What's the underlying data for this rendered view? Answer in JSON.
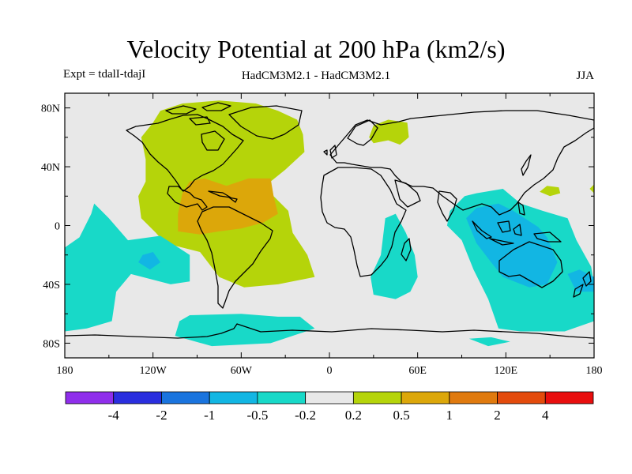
{
  "header": {
    "title": "Velocity Potential at 200 hPa (km2/s)",
    "expt": "Expt = tdalI-tdajI",
    "models": "HadCM3M2.1 - HadCM3M2.1",
    "season": "JJA"
  },
  "chart_data": {
    "type": "contour-map",
    "title": "Velocity Potential at 200 hPa (km2/s)",
    "projection": "cylindrical equidistant",
    "xlim": [
      -180,
      180
    ],
    "ylim": [
      -90,
      90
    ],
    "x_ticks": [
      {
        "value": -180,
        "label": "180"
      },
      {
        "value": -120,
        "label": "120W"
      },
      {
        "value": -60,
        "label": "60W"
      },
      {
        "value": 0,
        "label": "0"
      },
      {
        "value": 60,
        "label": "60E"
      },
      {
        "value": 120,
        "label": "120E"
      },
      {
        "value": 180,
        "label": "180"
      }
    ],
    "y_ticks": [
      {
        "value": 80,
        "label": "80N"
      },
      {
        "value": 40,
        "label": "40N"
      },
      {
        "value": 0,
        "label": "0"
      },
      {
        "value": -40,
        "label": "40S"
      },
      {
        "value": -80,
        "label": "80S"
      }
    ],
    "colorbar": {
      "colors": [
        "#8f2eeb",
        "#2a2ede",
        "#1a74de",
        "#12b6e3",
        "#18d9c8",
        "#e8e8e8",
        "#b5d40a",
        "#dca70a",
        "#e07a0e",
        "#e34b0c",
        "#e80e0e"
      ],
      "labels": [
        "-4",
        "-2",
        "-1",
        "-0.5",
        "-0.2",
        "0.2",
        "0.5",
        "1",
        "2",
        "4"
      ]
    },
    "regions": [
      {
        "level": "0.2 to 0.5",
        "color": "#b5d40a",
        "points": [
          [
            -115,
            78
          ],
          [
            -100,
            83
          ],
          [
            -75,
            85
          ],
          [
            -50,
            83
          ],
          [
            -35,
            78
          ],
          [
            -22,
            72
          ],
          [
            -18,
            62
          ],
          [
            -17,
            50
          ],
          [
            -30,
            38
          ],
          [
            -40,
            30
          ],
          [
            -38,
            20
          ],
          [
            -28,
            10
          ],
          [
            -25,
            -5
          ],
          [
            -15,
            -20
          ],
          [
            -10,
            -35
          ],
          [
            -35,
            -40
          ],
          [
            -58,
            -42
          ],
          [
            -75,
            -35
          ],
          [
            -88,
            -18
          ],
          [
            -112,
            -12
          ],
          [
            -118,
            -5
          ],
          [
            -128,
            5
          ],
          [
            -130,
            20
          ],
          [
            -125,
            30
          ],
          [
            -125,
            45
          ],
          [
            -128,
            60
          ],
          [
            -120,
            70
          ]
        ]
      },
      {
        "level": "0.2 to 0.5",
        "color": "#b5d40a",
        "points": [
          [
            27,
            60
          ],
          [
            30,
            68
          ],
          [
            40,
            72
          ],
          [
            53,
            70
          ],
          [
            54,
            60
          ],
          [
            48,
            55
          ],
          [
            40,
            58
          ],
          [
            30,
            56
          ]
        ]
      },
      {
        "level": "0.2 to 0.5",
        "color": "#b5d40a",
        "points": [
          [
            143,
            23
          ],
          [
            148,
            27
          ],
          [
            156,
            26
          ],
          [
            157,
            22
          ],
          [
            150,
            20
          ]
        ]
      },
      {
        "level": "0.2 to 0.5",
        "color": "#b5d40a",
        "points": [
          [
            177,
            25
          ],
          [
            180,
            28
          ],
          [
            180,
            22
          ]
        ]
      },
      {
        "level": "0.5 to 1",
        "color": "#dca70a",
        "points": [
          [
            -95,
            30
          ],
          [
            -85,
            32
          ],
          [
            -70,
            27
          ],
          [
            -55,
            32
          ],
          [
            -40,
            32
          ],
          [
            -38,
            20
          ],
          [
            -35,
            8
          ],
          [
            -45,
            2
          ],
          [
            -60,
            -2
          ],
          [
            -75,
            -4
          ],
          [
            -88,
            -6
          ],
          [
            -103,
            -4
          ],
          [
            -103,
            8
          ],
          [
            -100,
            22
          ]
        ]
      },
      {
        "level": "-0.5 to -0.2",
        "color": "#18d9c8",
        "points": [
          [
            -180,
            -15
          ],
          [
            -170,
            -8
          ],
          [
            -162,
            8
          ],
          [
            -160,
            15
          ],
          [
            -150,
            5
          ],
          [
            -137,
            -10
          ],
          [
            -115,
            -7
          ],
          [
            -95,
            -20
          ],
          [
            -95,
            -38
          ],
          [
            -108,
            -40
          ],
          [
            -135,
            -33
          ],
          [
            -145,
            -45
          ],
          [
            -148,
            -65
          ],
          [
            -165,
            -70
          ],
          [
            -180,
            -72
          ]
        ]
      },
      {
        "level": "-0.5 to -0.2",
        "color": "#18d9c8",
        "points": [
          [
            -102,
            -65
          ],
          [
            -95,
            -61
          ],
          [
            -60,
            -60
          ],
          [
            -35,
            -62
          ],
          [
            -20,
            -62
          ],
          [
            -10,
            -70
          ],
          [
            -40,
            -80
          ],
          [
            -80,
            -82
          ],
          [
            -105,
            -75
          ]
        ]
      },
      {
        "level": "-0.5 to -0.2",
        "color": "#18d9c8",
        "points": [
          [
            38,
            5
          ],
          [
            45,
            8
          ],
          [
            52,
            -5
          ],
          [
            58,
            -20
          ],
          [
            60,
            -35
          ],
          [
            55,
            -45
          ],
          [
            45,
            -50
          ],
          [
            30,
            -47
          ],
          [
            28,
            -35
          ],
          [
            35,
            -20
          ]
        ]
      },
      {
        "level": "-0.5 to -0.2",
        "color": "#18d9c8",
        "points": [
          [
            82,
            10
          ],
          [
            92,
            20
          ],
          [
            100,
            22
          ],
          [
            118,
            25
          ],
          [
            130,
            15
          ],
          [
            145,
            10
          ],
          [
            162,
            5
          ],
          [
            168,
            -10
          ],
          [
            178,
            -28
          ],
          [
            180,
            -40
          ],
          [
            180,
            -65
          ],
          [
            160,
            -72
          ],
          [
            130,
            -72
          ],
          [
            115,
            -70
          ],
          [
            108,
            -50
          ],
          [
            98,
            -30
          ],
          [
            90,
            -10
          ],
          [
            80,
            0
          ]
        ]
      },
      {
        "level": "-0.5 to -0.2",
        "color": "#18d9c8",
        "points": [
          [
            95,
            -77
          ],
          [
            110,
            -76
          ],
          [
            123,
            -79
          ],
          [
            108,
            -82
          ]
        ]
      },
      {
        "level": "-1 to -0.5",
        "color": "#12b6e3",
        "points": [
          [
            -127,
            -20
          ],
          [
            -120,
            -18
          ],
          [
            -115,
            -25
          ],
          [
            -122,
            -30
          ],
          [
            -130,
            -25
          ]
        ]
      },
      {
        "level": "-1 to -0.5",
        "color": "#12b6e3",
        "points": [
          [
            93,
            5
          ],
          [
            100,
            12
          ],
          [
            115,
            15
          ],
          [
            125,
            10
          ],
          [
            142,
            -1
          ],
          [
            148,
            -8
          ],
          [
            155,
            -25
          ],
          [
            148,
            -40
          ],
          [
            136,
            -42
          ],
          [
            118,
            -35
          ],
          [
            110,
            -25
          ],
          [
            100,
            -12
          ]
        ]
      },
      {
        "level": "-1 to -0.5",
        "color": "#12b6e3",
        "points": [
          [
            162,
            -33
          ],
          [
            170,
            -30
          ],
          [
            180,
            -35
          ],
          [
            180,
            -45
          ],
          [
            168,
            -45
          ]
        ]
      }
    ]
  }
}
